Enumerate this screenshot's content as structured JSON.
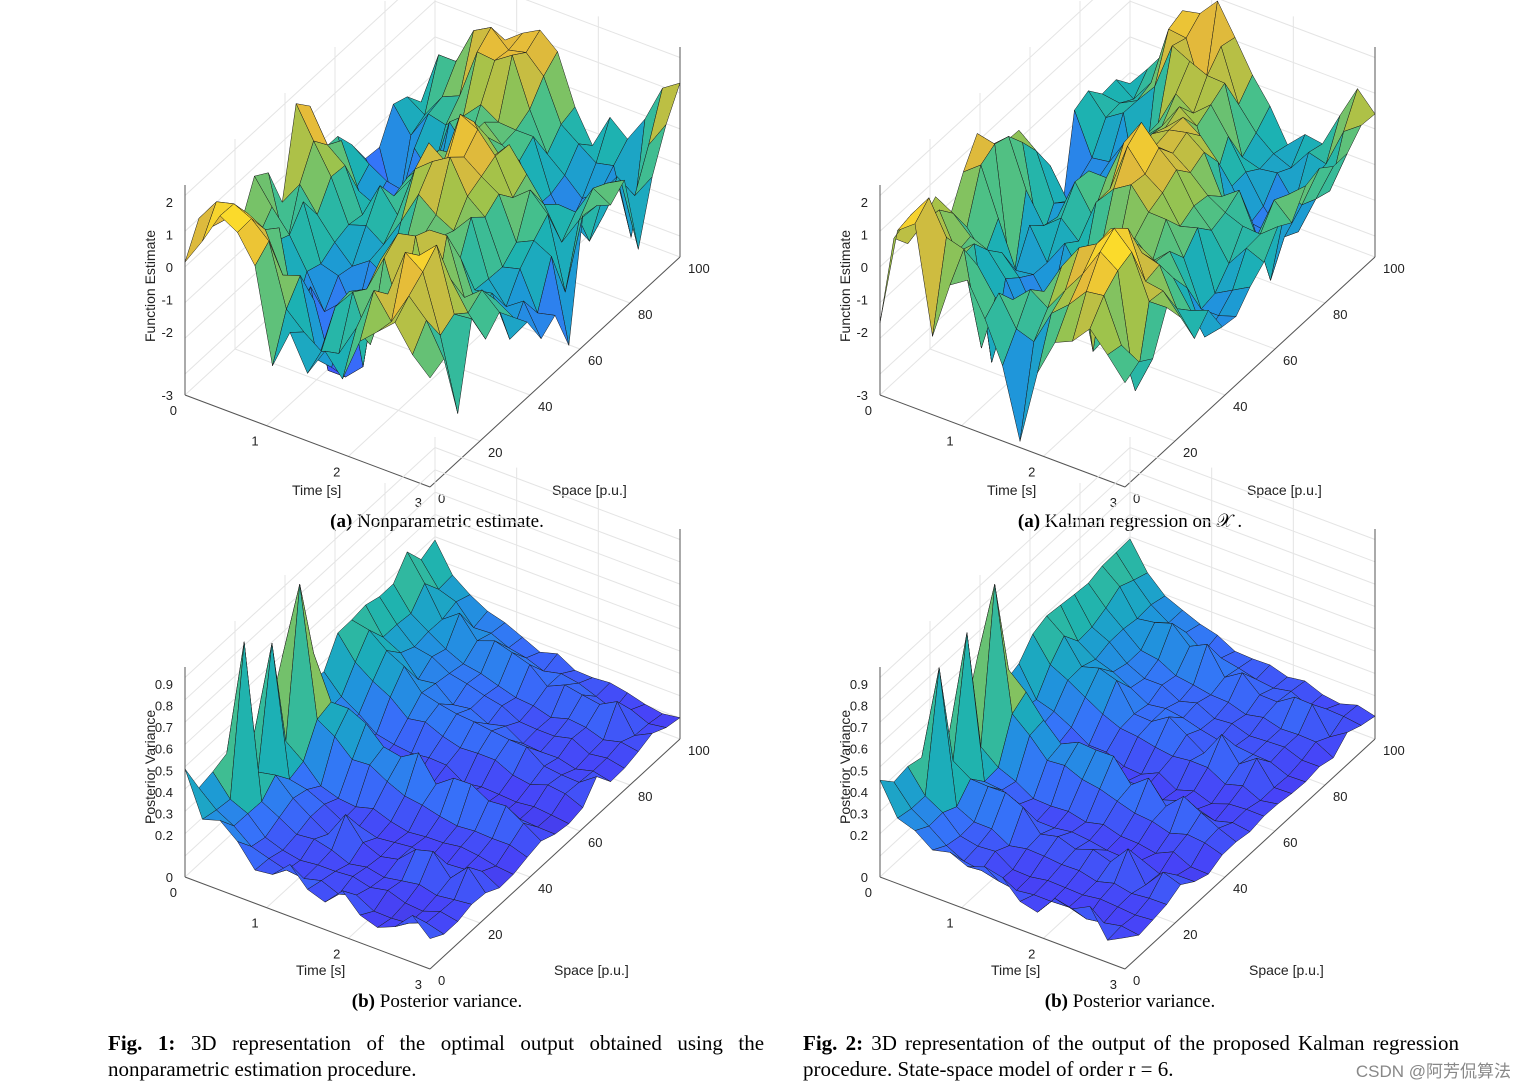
{
  "colors": {
    "viridis_low": "#3a2fa8",
    "viridis_mid": "#21a5c8",
    "viridis_high": "#f5d226"
  },
  "panels": [
    {
      "id": "fig1a",
      "sublabel": "(a)",
      "subtitle": "Nonparametric estimate.",
      "zlabel": "Function Estimate",
      "xlabel": "Time [s]",
      "ylabel": "Space [p.u.]",
      "chart_data": {
        "type": "surface",
        "x_ticks": [
          "0",
          "1",
          "2",
          "3"
        ],
        "y_ticks": [
          "0",
          "20",
          "40",
          "60",
          "80",
          "100"
        ],
        "z_ticks": [
          "2",
          "1",
          "0",
          "-1",
          "-2",
          "-3"
        ],
        "zlim": [
          -3.5,
          2.5
        ],
        "grid": true
      }
    },
    {
      "id": "fig2a",
      "sublabel": "(a)",
      "subtitle": "Kalman regression on 𝒳 .",
      "zlabel": "Function Estimate",
      "xlabel": "Time [s]",
      "ylabel": "Space [p.u.]",
      "chart_data": {
        "type": "surface",
        "x_ticks": [
          "0",
          "1",
          "2",
          "3"
        ],
        "y_ticks": [
          "0",
          "20",
          "40",
          "60",
          "80",
          "100"
        ],
        "z_ticks": [
          "2",
          "1",
          "0",
          "-1",
          "-2",
          "-3"
        ],
        "zlim": [
          -3.5,
          2.5
        ],
        "grid": true
      }
    },
    {
      "id": "fig1b",
      "sublabel": "(b)",
      "subtitle": "Posterior variance.",
      "zlabel": "Posterior Variance",
      "xlabel": "Time [s]",
      "ylabel": "Space [p.u.]",
      "chart_data": {
        "type": "surface",
        "x_ticks": [
          "0",
          "1",
          "2",
          "3"
        ],
        "y_ticks": [
          "0",
          "20",
          "40",
          "60",
          "80",
          "100"
        ],
        "z_ticks": [
          "0.9",
          "0.8",
          "0.7",
          "0.6",
          "0.5",
          "0.4",
          "0.3",
          "0.2",
          "0"
        ],
        "zlim": [
          0,
          0.95
        ],
        "grid": true
      }
    },
    {
      "id": "fig2b",
      "sublabel": "(b)",
      "subtitle": "Posterior variance.",
      "zlabel": "Posterior Variance",
      "xlabel": "Time [s]",
      "ylabel": "Space [p.u.]",
      "chart_data": {
        "type": "surface",
        "x_ticks": [
          "0",
          "1",
          "2",
          "3"
        ],
        "y_ticks": [
          "0",
          "20",
          "40",
          "60",
          "80",
          "100"
        ],
        "z_ticks": [
          "0.9",
          "0.8",
          "0.7",
          "0.6",
          "0.5",
          "0.4",
          "0.3",
          "0.2",
          "0"
        ],
        "zlim": [
          0,
          0.95
        ],
        "grid": true
      }
    }
  ],
  "captions": {
    "fig1": {
      "label": "Fig. 1:",
      "text": " 3D representation of the optimal output obtained using the nonparametric estimation procedure."
    },
    "fig2": {
      "label": "Fig. 2:",
      "text": " 3D representation of the output of the proposed Kalman regression procedure. State-space model of order r = 6."
    }
  },
  "watermark": "CSDN @阿芳侃算法"
}
